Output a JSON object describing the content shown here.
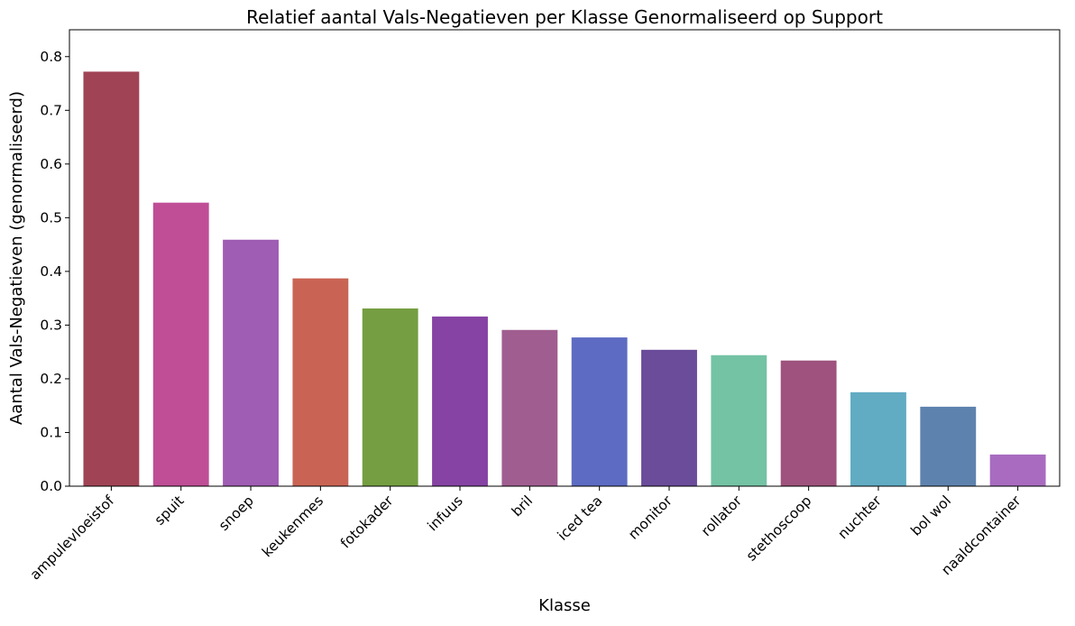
{
  "chart_data": {
    "type": "bar",
    "title": "Relatief aantal Vals-Negatieven per Klasse Genormaliseerd op Support",
    "xlabel": "Klasse",
    "ylabel": "Aantal Vals-Negatieven (genormaliseerd)",
    "ylim": [
      0,
      0.85
    ],
    "yticks": [
      0.0,
      0.1,
      0.2,
      0.3,
      0.4,
      0.5,
      0.6,
      0.7,
      0.8
    ],
    "grid": false,
    "categories": [
      "ampulevloeistof",
      "spuit",
      "snoep",
      "keukenmes",
      "fotokader",
      "infuus",
      "bril",
      "iced tea",
      "monitor",
      "rollator",
      "stethoscoop",
      "nuchter",
      "bol wol",
      "naaldcontainer"
    ],
    "values": [
      0.772,
      0.528,
      0.459,
      0.387,
      0.331,
      0.316,
      0.291,
      0.277,
      0.254,
      0.244,
      0.234,
      0.175,
      0.148,
      0.059
    ],
    "colors": [
      "#a04455",
      "#bf4e96",
      "#9f5db4",
      "#c96454",
      "#759e42",
      "#8643a3",
      "#a05e90",
      "#5d6cc2",
      "#6a4c9a",
      "#74c3a5",
      "#9e527d",
      "#61abc3",
      "#5e82ae",
      "#a86bc0"
    ]
  }
}
